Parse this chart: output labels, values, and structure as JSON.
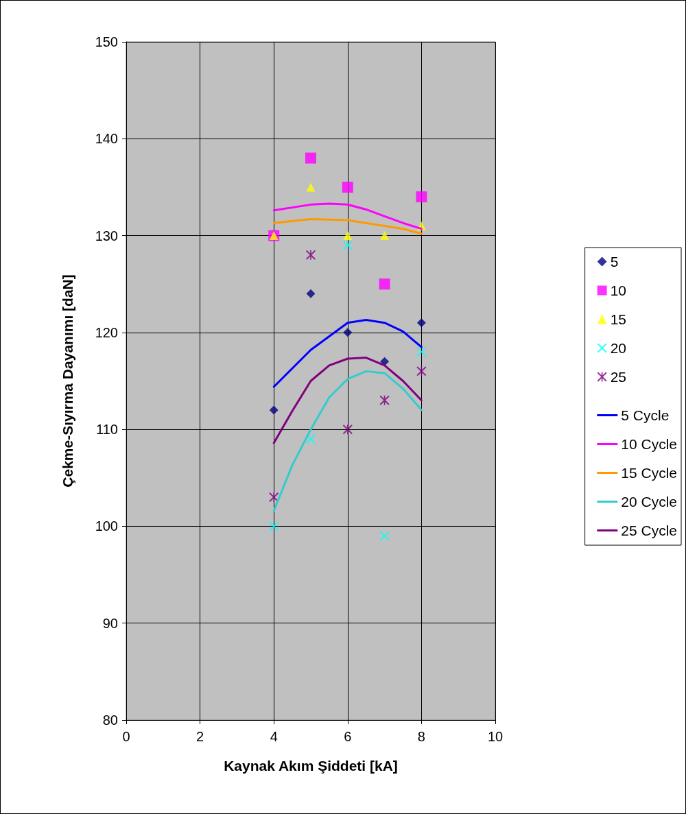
{
  "chart_data": {
    "type": "scatter",
    "xlabel": "Kaynak Akım Şiddeti [kA]",
    "ylabel": "Çekme-Sıyırma Dayanımı [daN]",
    "xlim": [
      0,
      10
    ],
    "xticks": [
      0,
      2,
      4,
      6,
      8,
      10
    ],
    "ylim": [
      80,
      150
    ],
    "yticks": [
      80,
      90,
      100,
      110,
      120,
      130,
      140,
      150
    ],
    "grid": true,
    "legend": "right",
    "x": [
      4,
      5,
      6,
      7,
      8
    ],
    "series": [
      {
        "name": "5",
        "color": "#000080",
        "marker": "diamond",
        "values": [
          112,
          124,
          120,
          117,
          121
        ]
      },
      {
        "name": "10",
        "color": "#ff00ff",
        "marker": "square",
        "values": [
          130,
          138,
          135,
          125,
          134
        ]
      },
      {
        "name": "15",
        "color": "#ffff00",
        "marker": "triangle",
        "values": [
          130,
          135,
          130,
          130,
          131
        ]
      },
      {
        "name": "20",
        "color": "#00ffff",
        "marker": "cross",
        "values": [
          100,
          109,
          129,
          99,
          118
        ]
      },
      {
        "name": "25",
        "color": "#800080",
        "marker": "star",
        "values": [
          103,
          128,
          110,
          113,
          116
        ]
      },
      {
        "name": "5 Cycle",
        "type": "line",
        "color": "#0000ff",
        "marker": "none",
        "x": [
          4,
          5,
          6,
          6.5,
          7,
          7.5,
          8
        ],
        "values": [
          114.4,
          118.2,
          121.0,
          121.3,
          121.0,
          120.1,
          118.5
        ]
      },
      {
        "name": "10 Cycle",
        "type": "line",
        "color": "#ff00ff",
        "marker": "none",
        "x": [
          4,
          5,
          5.5,
          6,
          6.5,
          7,
          7.5,
          8
        ],
        "values": [
          132.6,
          133.2,
          133.3,
          133.2,
          132.7,
          132.0,
          131.3,
          130.7
        ]
      },
      {
        "name": "15 Cycle",
        "type": "line",
        "color": "#ff9900",
        "marker": "none",
        "x": [
          4,
          5,
          6,
          7,
          7.5,
          8
        ],
        "values": [
          131.3,
          131.7,
          131.6,
          131.0,
          130.7,
          130.2
        ]
      },
      {
        "name": "20 Cycle",
        "type": "line",
        "color": "#33cccc",
        "marker": "none",
        "x": [
          4,
          4.5,
          5,
          5.5,
          6,
          6.5,
          7,
          7.5,
          8
        ],
        "values": [
          101.6,
          106.3,
          110.0,
          113.3,
          115.2,
          116.0,
          115.8,
          114.2,
          112.0
        ]
      },
      {
        "name": "25 Cycle",
        "type": "line",
        "color": "#800080",
        "marker": "none",
        "x": [
          4,
          4.5,
          5,
          5.5,
          6,
          6.5,
          7,
          7.5,
          8
        ],
        "values": [
          108.6,
          111.9,
          115.0,
          116.6,
          117.3,
          117.4,
          116.6,
          115.0,
          113.0
        ]
      }
    ]
  }
}
